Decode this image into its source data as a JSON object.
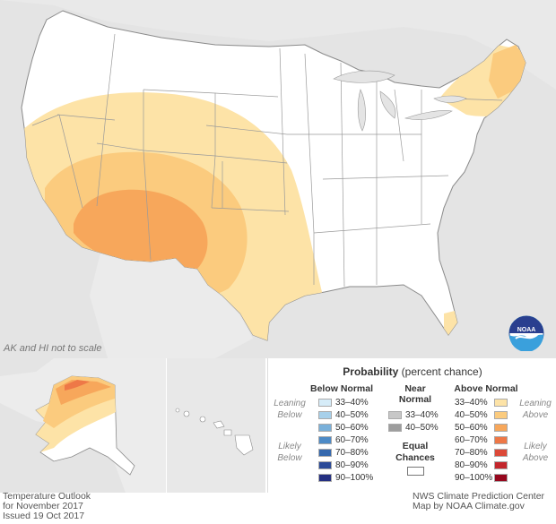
{
  "map": {
    "scale_note": "AK and HI not to scale",
    "colors": {
      "land": "#ffffff",
      "background": "#e4e4e4",
      "border": "#7f7f7f",
      "above_33_40": "#fde3a7",
      "above_40_50": "#fbcb7e",
      "above_50_60": "#f7a75b"
    },
    "logo_label": "NOAA"
  },
  "legend": {
    "title_bold": "Probability",
    "title_rest": " (percent chance)",
    "below_header": "Below Normal",
    "near_header_1": "Near",
    "near_header_2": "Normal",
    "above_header": "Above Normal",
    "leaning_below_1": "Leaning",
    "leaning_below_2": "Below",
    "likely_below_1": "Likely",
    "likely_below_2": "Below",
    "leaning_above_1": "Leaning",
    "leaning_above_2": "Above",
    "likely_above_1": "Likely",
    "likely_above_2": "Above",
    "equal_1": "Equal",
    "equal_2": "Chances",
    "below": [
      {
        "label": "33–40%",
        "color": "#d6ecf8"
      },
      {
        "label": "40–50%",
        "color": "#a7d0ea"
      },
      {
        "label": "50–60%",
        "color": "#79b0da"
      },
      {
        "label": "60–70%",
        "color": "#4d8ac6"
      },
      {
        "label": "70–80%",
        "color": "#3568ae"
      },
      {
        "label": "80–90%",
        "color": "#2b4a98"
      },
      {
        "label": "90–100%",
        "color": "#242f81"
      }
    ],
    "near": [
      {
        "label": "33–40%",
        "color": "#c7c7c7"
      },
      {
        "label": "40–50%",
        "color": "#9d9d9d"
      }
    ],
    "above": [
      {
        "label": "33–40%",
        "color": "#fde3a7"
      },
      {
        "label": "40–50%",
        "color": "#fbcb7e"
      },
      {
        "label": "50–60%",
        "color": "#f7a75b"
      },
      {
        "label": "60–70%",
        "color": "#ee7847"
      },
      {
        "label": "70–80%",
        "color": "#dc4938"
      },
      {
        "label": "80–90%",
        "color": "#c3262c"
      },
      {
        "label": "90–100%",
        "color": "#96071d"
      }
    ]
  },
  "footer": {
    "left_1": "Temperature Outlook",
    "left_2": "for November 2017",
    "left_3": "Issued 19 Oct 2017",
    "right_1": "NWS Climate Prediction Center",
    "right_2": "Map by NOAA Climate.gov"
  }
}
